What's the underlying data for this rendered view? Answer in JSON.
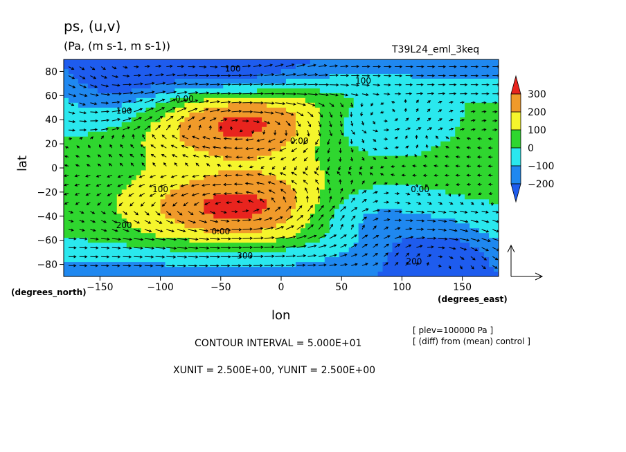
{
  "header": {
    "title": "ps, (u,v)",
    "units": "(Pa, (m s-1, m s-1))",
    "run_id": "T39L24_eml_3keq"
  },
  "chart_data": {
    "type": "heatmap",
    "xlabel": "lon",
    "ylabel": "lat",
    "x_unit_label": "(degrees_east)",
    "y_unit_label": "(degrees_north)",
    "xlim": [
      -180,
      180
    ],
    "ylim": [
      -90,
      90
    ],
    "x_ticks": [
      -150,
      -100,
      -50,
      0,
      50,
      100,
      150
    ],
    "x_tick_labels": [
      "−150",
      "−100",
      "−50",
      "0",
      "50",
      "100",
      "150"
    ],
    "y_ticks": [
      80,
      60,
      40,
      20,
      0,
      -20,
      -40,
      -60,
      -80
    ],
    "y_tick_labels": [
      "80",
      "60",
      "40",
      "20",
      "0",
      "−20",
      "−40",
      "−60",
      "−80"
    ],
    "colorbar": {
      "levels": [
        300,
        200,
        100,
        0,
        -100,
        -200
      ],
      "labels": [
        "300",
        "200",
        "100",
        "0",
        "−100",
        "−200"
      ],
      "colors": [
        "#e8241e",
        "#f09a2a",
        "#f5f52c",
        "#2fd62f",
        "#2ae8ee",
        "#1f88f0",
        "#1e5cee"
      ]
    },
    "contour_labels": [
      {
        "text": "100",
        "lon": -40,
        "lat": 80
      },
      {
        "text": "100",
        "lon": 68,
        "lat": 70
      },
      {
        "text": "100",
        "lon": -130,
        "lat": 45
      },
      {
        "text": "0.00",
        "lon": -80,
        "lat": 55
      },
      {
        "text": "0.00",
        "lon": 15,
        "lat": 20
      },
      {
        "text": "0.00",
        "lon": 115,
        "lat": -20
      },
      {
        "text": "100",
        "lon": -100,
        "lat": -20
      },
      {
        "text": "200",
        "lon": -130,
        "lat": -50
      },
      {
        "text": "0.00",
        "lon": -50,
        "lat": -55
      },
      {
        "text": "300",
        "lon": -30,
        "lat": -75
      },
      {
        "text": "200",
        "lon": 110,
        "lat": -80
      }
    ],
    "field_features": [
      {
        "name": "high",
        "lon": -30,
        "lat": 38,
        "peak": 330
      },
      {
        "name": "high",
        "lon": -30,
        "lat": -33,
        "peak": 330
      },
      {
        "name": "low",
        "lon": -35,
        "lat": 80,
        "peak": -180
      },
      {
        "name": "low",
        "lon": -125,
        "lat": 77,
        "peak": -150
      },
      {
        "name": "low",
        "lon": -140,
        "lat": 50,
        "peak": -130
      },
      {
        "name": "low",
        "lon": 65,
        "lat": 35,
        "peak": -170
      },
      {
        "name": "low",
        "lon": 60,
        "lat": -38,
        "peak": -190
      },
      {
        "name": "low",
        "lon": 130,
        "lat": -65,
        "peak": -200
      }
    ],
    "vector_unit_arrow": true
  },
  "footer": {
    "contour_interval": "CONTOUR INTERVAL = 5.000E+01",
    "vector_units": "XUNIT = 2.500E+00, YUNIT = 2.500E+00",
    "plev": "[ plev=100000 Pa ]",
    "diff_note": "[ (diff) from (mean) control ]"
  }
}
